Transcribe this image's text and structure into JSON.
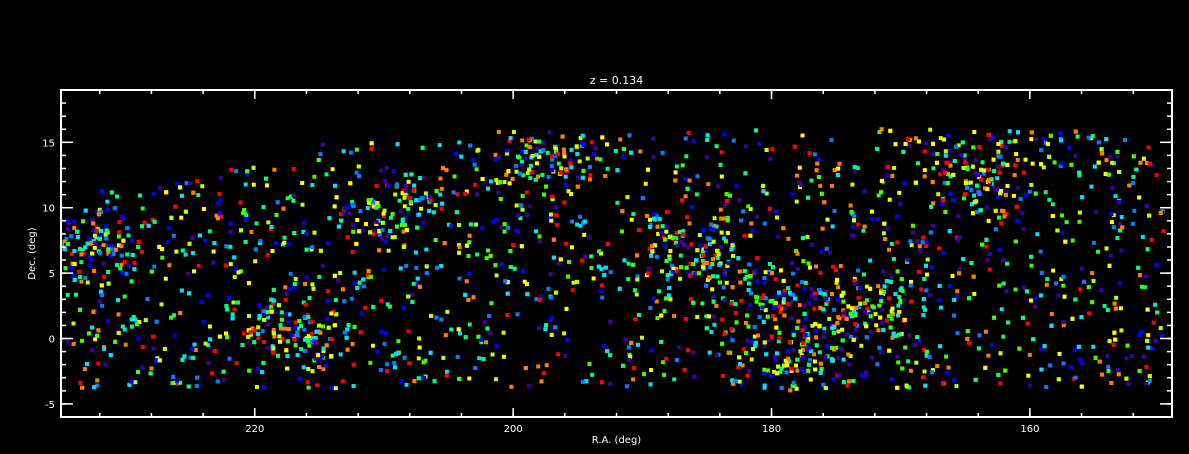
{
  "chart_data": {
    "type": "scatter",
    "title": "z = 0.134",
    "xlabel": "R.A. (deg)",
    "ylabel": "Dec. (deg)",
    "xlim": [
      235,
      149
    ],
    "ylim": [
      -6,
      19
    ],
    "x_ticks_major": [
      220,
      200,
      180,
      160
    ],
    "x_tick_labels": [
      "220",
      "200",
      "180",
      "160"
    ],
    "y_ticks_major": [
      -5,
      0,
      5,
      10,
      15
    ],
    "y_tick_labels": [
      "-5",
      "0",
      "5",
      "10",
      "15"
    ],
    "x_minor_step": 4,
    "y_minor_step": 1,
    "grid": false,
    "background": "#000000",
    "axis_color": "#ffffff",
    "color_scale": [
      "#3c00a0",
      "#0000ff",
      "#0080ff",
      "#00e0ff",
      "#00ff80",
      "#40ff00",
      "#c0ff00",
      "#ffff00",
      "#ff8000",
      "#ff0000"
    ],
    "point_cloud": {
      "count": 3600,
      "note_clumps": [
        {
          "ra": 217,
          "dec": 0.5
        },
        {
          "ra": 209,
          "dec": 10
        },
        {
          "ra": 186,
          "dec": 7
        },
        {
          "ra": 180,
          "dec": 3
        },
        {
          "ra": 178,
          "dec": -1.5
        },
        {
          "ra": 164,
          "dec": 12.5
        },
        {
          "ra": 232,
          "dec": 7
        },
        {
          "ra": 198,
          "dec": 14
        },
        {
          "ra": 173,
          "dec": 2
        }
      ]
    }
  }
}
